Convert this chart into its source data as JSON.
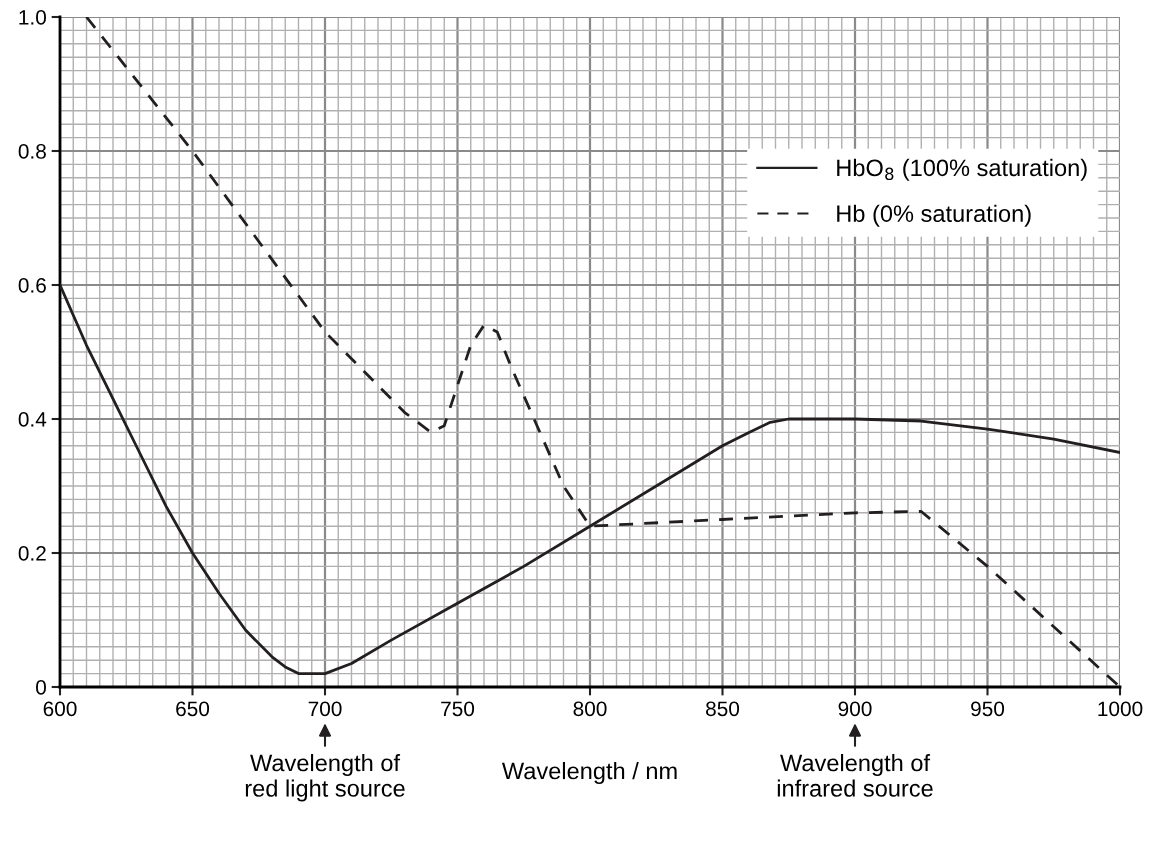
{
  "chart_data": {
    "type": "line",
    "xlabel": "Wavelength / nm",
    "xlim": [
      600,
      1000
    ],
    "xticks": [
      600,
      650,
      700,
      750,
      800,
      850,
      900,
      950,
      1000
    ],
    "ylim": [
      0,
      1.0
    ],
    "yticks": [
      0,
      0.2,
      0.4,
      0.6,
      0.8,
      {
        "value": 1.0,
        "label": "1.0"
      }
    ],
    "grid": true,
    "legend": "top right",
    "marker": "none",
    "series": [
      {
        "name": "HbO$_{8}$ (100% saturation)",
        "color": "#231f20",
        "line_style": "solid",
        "x": [
          600,
          610,
          620,
          630,
          640,
          650,
          660,
          670,
          680,
          685,
          690,
          700,
          710,
          725,
          750,
          775,
          800,
          825,
          850,
          860,
          868,
          875,
          900,
          925,
          950,
          975,
          1000
        ],
        "values": [
          0.6,
          0.51,
          0.43,
          0.35,
          0.27,
          0.2,
          0.14,
          0.085,
          0.045,
          0.03,
          0.02,
          0.02,
          0.035,
          0.07,
          0.125,
          0.18,
          0.24,
          0.3,
          0.36,
          0.38,
          0.395,
          0.4,
          0.4,
          0.397,
          0.385,
          0.37,
          0.35
        ]
      },
      {
        "name": "Hb (0% saturation)",
        "color": "#231f20",
        "line_style": "dashed",
        "x": [
          610,
          650,
          700,
          710,
          720,
          730,
          740,
          745,
          750,
          755,
          760,
          765,
          770,
          780,
          790,
          800,
          850,
          900,
          925,
          950,
          975,
          1000
        ],
        "values": [
          1.0,
          0.8,
          0.53,
          0.49,
          0.45,
          0.41,
          0.38,
          0.39,
          0.45,
          0.51,
          0.54,
          0.53,
          0.48,
          0.39,
          0.3,
          0.24,
          0.25,
          0.26,
          0.262,
          0.18,
          0.09,
          0.0
        ]
      }
    ],
    "annotations": [
      {
        "text": "Wavelength of\nred light source",
        "x": 700
      },
      {
        "text": "Wavelength of\ninfrared source",
        "x": 900
      }
    ]
  }
}
